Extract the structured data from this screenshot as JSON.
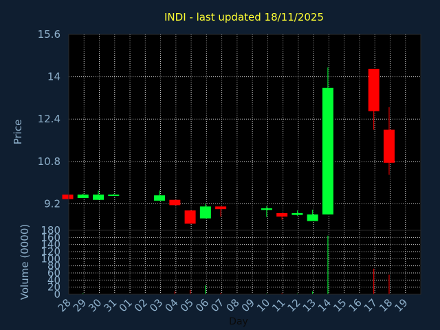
{
  "chart_data": {
    "type": "candlestick",
    "title": "INDI - last updated 18/11/2025",
    "xlabel": "Day",
    "price_panel": {
      "ylabel": "Price",
      "ylim": [
        8.2,
        15.6
      ],
      "yticks": [
        "15.6",
        "14",
        "12.4",
        "10.8",
        "9.2"
      ],
      "ytick_values": [
        15.6,
        14,
        12.4,
        10.8,
        9.2
      ],
      "grid": true
    },
    "volume_panel": {
      "ylabel": "Volume (0000)",
      "ylim": [
        0,
        180
      ],
      "yticks": [
        "180",
        "160",
        "140",
        "120",
        "100",
        "80",
        "60",
        "40",
        "20",
        "0"
      ],
      "ytick_values": [
        180,
        160,
        140,
        120,
        100,
        80,
        60,
        40,
        20,
        0
      ],
      "grid": true
    },
    "x_tick_labels": [
      "28",
      "29",
      "30",
      "31",
      "01",
      "02",
      "03",
      "04",
      "05",
      "06",
      "07",
      "08",
      "09",
      "10",
      "11",
      "12",
      "13",
      "14",
      "15",
      "16",
      "17",
      "18",
      "19"
    ],
    "candles": [
      {
        "day": "28",
        "open": 9.55,
        "close": 9.38,
        "high": 9.55,
        "low": 9.38,
        "volume": 0
      },
      {
        "day": "29",
        "open": 9.42,
        "close": 9.55,
        "high": 9.58,
        "low": 9.42,
        "volume": 3
      },
      {
        "day": "30",
        "open": 9.35,
        "close": 9.55,
        "high": 9.7,
        "low": 9.35,
        "volume": 1
      },
      {
        "day": "31",
        "open": 9.5,
        "close": 9.55,
        "high": 9.57,
        "low": 9.5,
        "volume": 1
      },
      {
        "day": "03",
        "open": 9.32,
        "close": 9.52,
        "high": 9.7,
        "low": 9.32,
        "volume": 1
      },
      {
        "day": "04",
        "open": 9.35,
        "close": 9.15,
        "high": 9.35,
        "low": 9.15,
        "volume": 8
      },
      {
        "day": "05",
        "open": 8.95,
        "close": 8.45,
        "high": 8.95,
        "low": 8.45,
        "volume": 12
      },
      {
        "day": "06",
        "open": 8.65,
        "close": 9.1,
        "high": 9.2,
        "low": 8.65,
        "volume": 25
      },
      {
        "day": "07",
        "open": 9.1,
        "close": 9.0,
        "high": 9.1,
        "low": 8.72,
        "volume": 4
      },
      {
        "day": "10",
        "open": 8.97,
        "close": 9.03,
        "high": 9.12,
        "low": 8.7,
        "volume": 2
      },
      {
        "day": "11",
        "open": 8.85,
        "close": 8.72,
        "high": 8.85,
        "low": 8.6,
        "volume": 3
      },
      {
        "day": "12",
        "open": 8.78,
        "close": 8.85,
        "high": 8.95,
        "low": 8.75,
        "volume": 2
      },
      {
        "day": "13",
        "open": 8.55,
        "close": 8.8,
        "high": 8.98,
        "low": 8.55,
        "volume": 8
      },
      {
        "day": "14",
        "open": 8.8,
        "close": 13.58,
        "high": 14.35,
        "low": 8.8,
        "volume": 165
      },
      {
        "day": "17",
        "open": 14.3,
        "close": 12.7,
        "high": 14.3,
        "low": 12.0,
        "volume": 72
      },
      {
        "day": "18",
        "open": 12.0,
        "close": 10.75,
        "high": 12.85,
        "low": 10.3,
        "volume": 55
      }
    ],
    "colors": {
      "up": "#00ff33",
      "down": "#ff0000",
      "grid": "#c8c8c8",
      "axis": "#2a2a2a",
      "plot_bg": "#000000",
      "page_bg": "#0f1e30",
      "title": "#ffff33",
      "tick_text": "#8fb1cc"
    }
  }
}
